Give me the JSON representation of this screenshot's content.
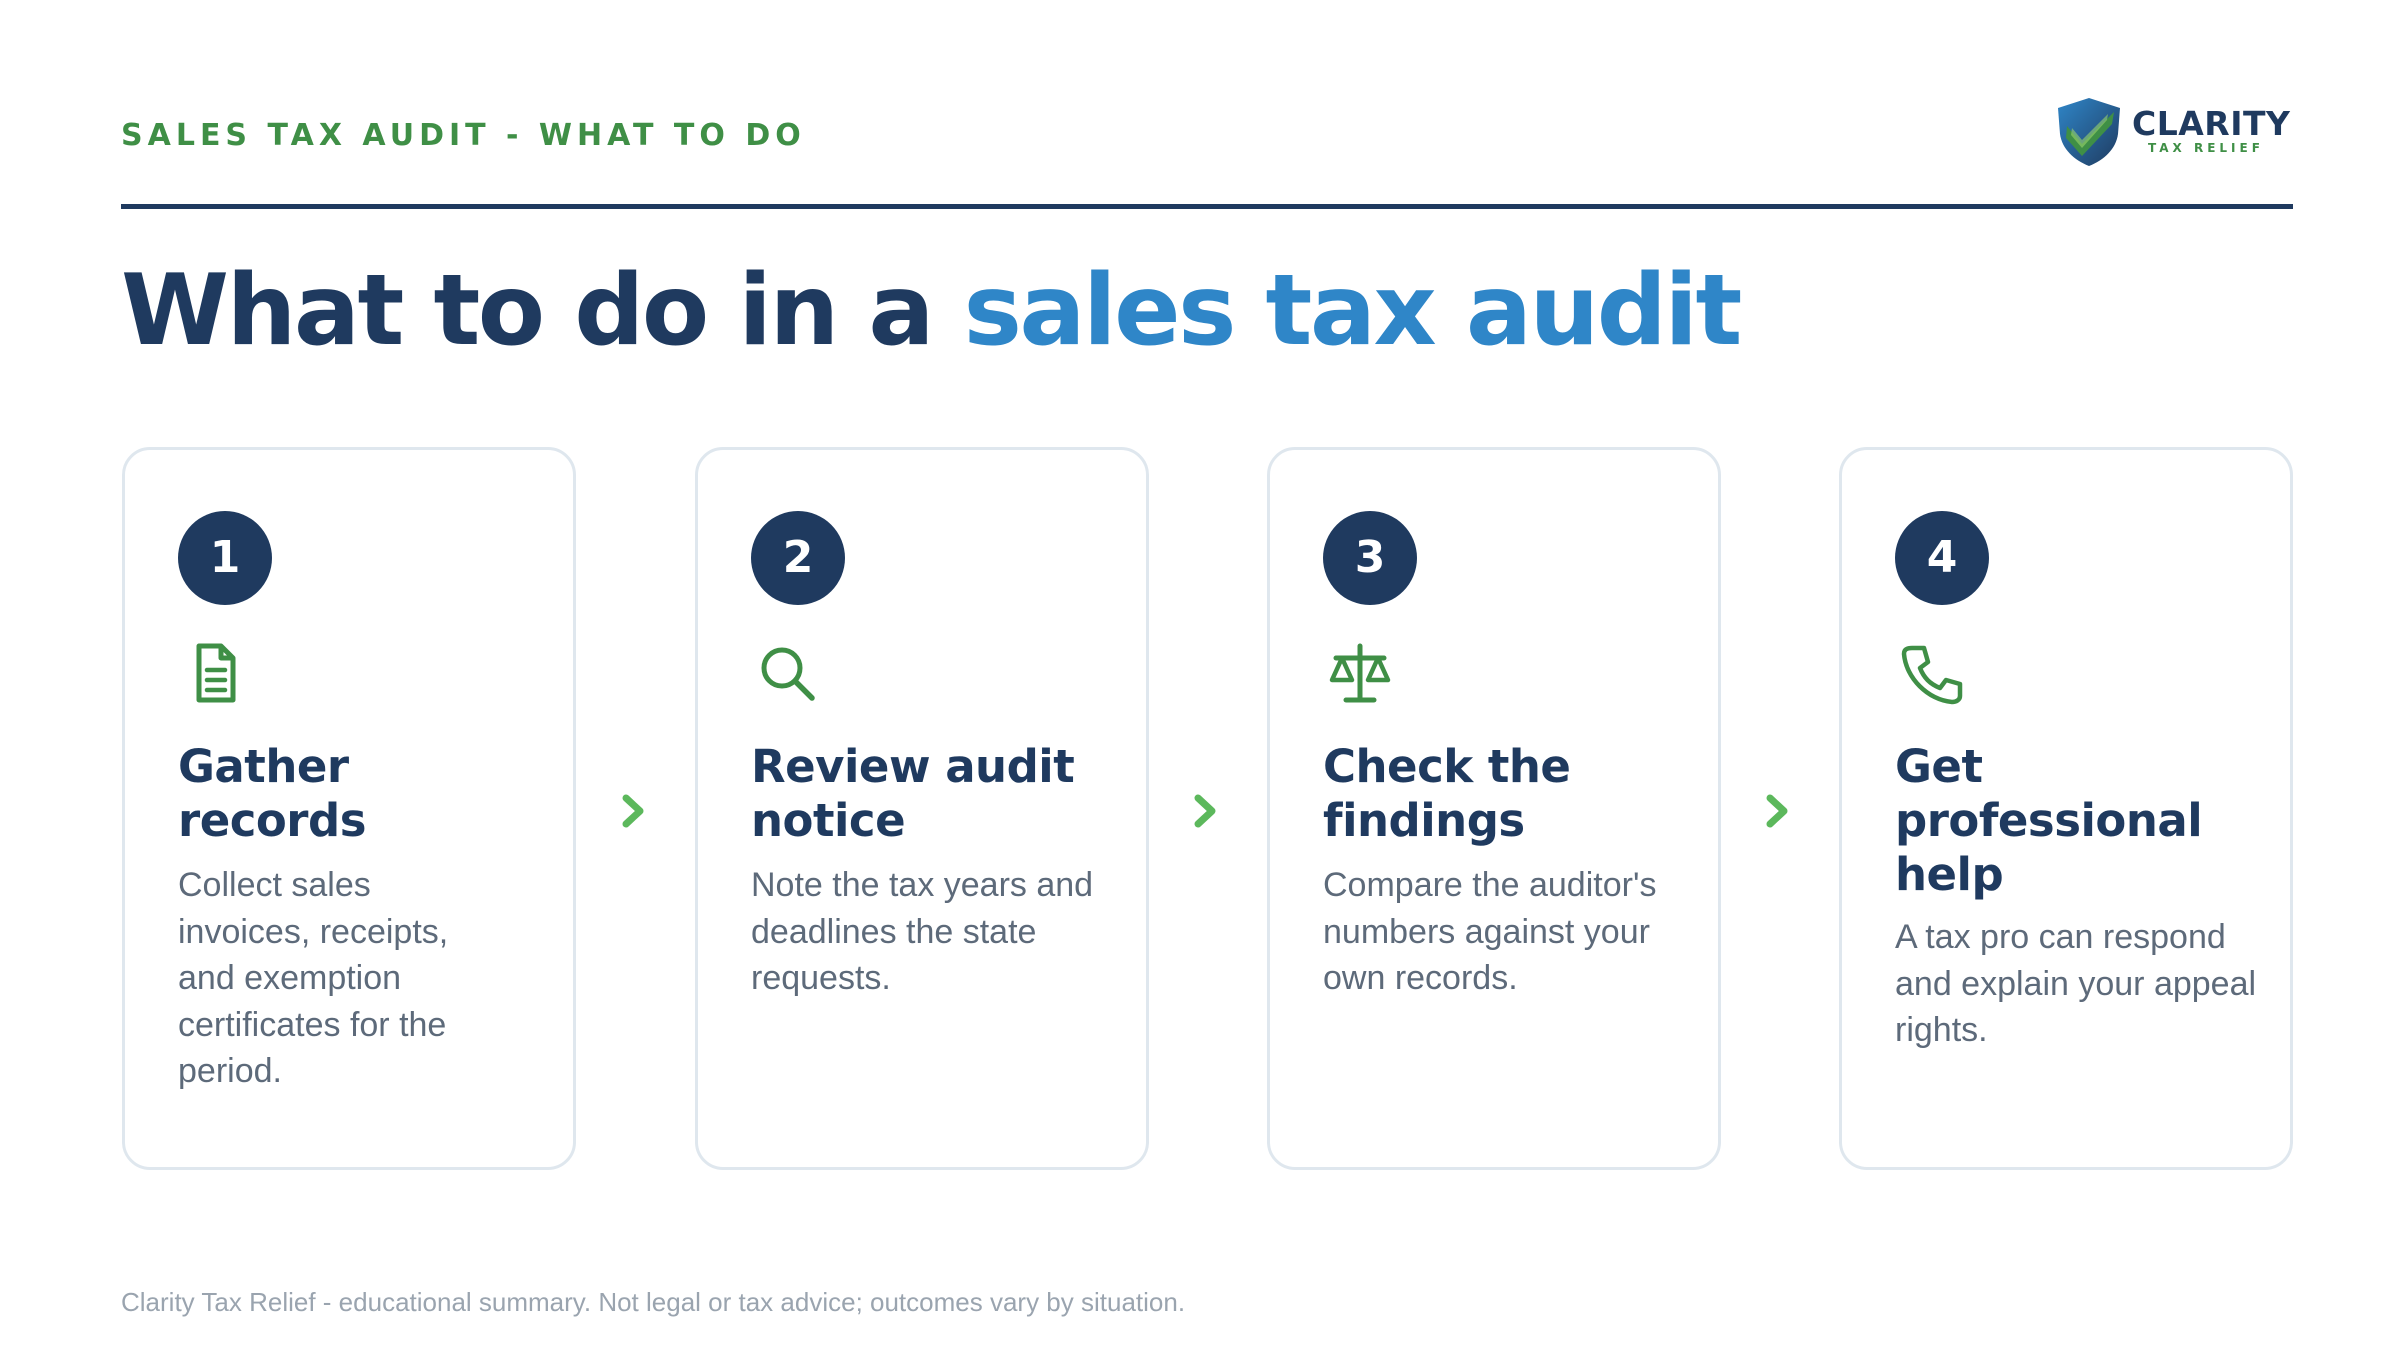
{
  "header": {
    "eyebrow": "SALES TAX AUDIT - WHAT TO DO",
    "logo_name": "CLARITY",
    "logo_sub": "TAX RELIEF"
  },
  "headline": {
    "part1": "What to do in a ",
    "accent": "sales tax audit"
  },
  "steps": [
    {
      "number": "1",
      "icon": "document-icon",
      "title": "Gather records",
      "description": "Collect sales invoices, receipts, and exemption certificates for the period."
    },
    {
      "number": "2",
      "icon": "magnifier-icon",
      "title": "Review audit notice",
      "description": "Note the tax years and deadlines the state requests."
    },
    {
      "number": "3",
      "icon": "scales-icon",
      "title": "Check the findings",
      "description": "Compare the auditor's numbers against your own records."
    },
    {
      "number": "4",
      "icon": "phone-icon",
      "title": "Get professional help",
      "description": "A tax pro can respond and explain your appeal rights."
    }
  ],
  "footer": "Clarity Tax Relief - educational summary. Not legal or tax advice; outcomes vary by situation.",
  "colors": {
    "navy": "#1f3a5f",
    "accent_blue": "#2f86c8",
    "green": "#3f8f46",
    "chevron_green": "#5cb85c",
    "card_border": "#dfe7ee",
    "body_text": "#5d6a7a",
    "footer_text": "#9aa4af"
  }
}
